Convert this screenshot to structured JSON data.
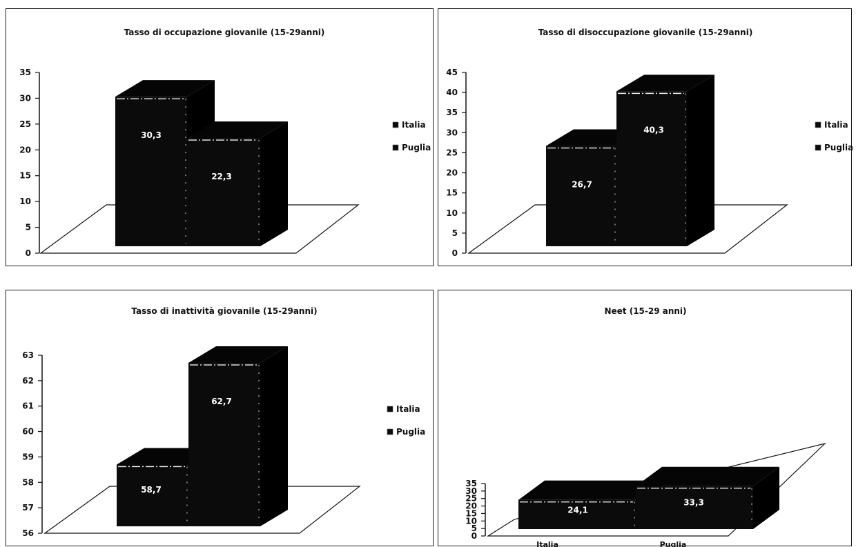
{
  "colors": {
    "bar": "#0b0b0b",
    "top": "#050505",
    "side": "#000000",
    "floor": "#ffffff",
    "line": "#111111"
  },
  "chart_data": [
    {
      "type": "bar",
      "title": "Tasso di occupazione giovanile (15-29anni)",
      "categories": [
        "Italia",
        "Puglia"
      ],
      "values": [
        30.3,
        22.3
      ],
      "data_labels": [
        "30,3",
        "22,3"
      ],
      "ylim": [
        0,
        35
      ],
      "yticks": [
        "0",
        "5",
        "10",
        "15",
        "20",
        "25",
        "30",
        "35"
      ],
      "legend": [
        "Italia",
        "Puglia"
      ],
      "legend_position": "right",
      "xlabel": "",
      "ylabel": ""
    },
    {
      "type": "bar",
      "title": "Tasso di disoccupazione giovanile (15-29anni)",
      "categories": [
        "Italia",
        "Puglia"
      ],
      "values": [
        26.7,
        40.3
      ],
      "data_labels": [
        "26,7",
        "40,3"
      ],
      "ylim": [
        0,
        45
      ],
      "yticks": [
        "0",
        "5",
        "10",
        "15",
        "20",
        "25",
        "30",
        "35",
        "40",
        "45"
      ],
      "legend": [
        "Italia",
        "Puglia"
      ],
      "legend_position": "right",
      "xlabel": "",
      "ylabel": ""
    },
    {
      "type": "bar",
      "title": "Tasso di inattività giovanile (15-29anni)",
      "categories": [
        "Italia",
        "Puglia"
      ],
      "values": [
        58.7,
        62.7
      ],
      "data_labels": [
        "58,7",
        "62,7"
      ],
      "ylim": [
        56,
        63
      ],
      "yticks": [
        "56",
        "57",
        "58",
        "59",
        "60",
        "61",
        "62",
        "63"
      ],
      "legend": [
        "Italia",
        "Puglia"
      ],
      "legend_position": "right",
      "xlabel": "",
      "ylabel": ""
    },
    {
      "type": "bar",
      "title": "Neet (15-29 anni)",
      "categories": [
        "Italia",
        "Puglia"
      ],
      "values": [
        24.1,
        33.3
      ],
      "data_labels": [
        "24,1",
        "33,3"
      ],
      "ylim": [
        0,
        35
      ],
      "yticks": [
        "0",
        "5",
        "10",
        "15",
        "20",
        "25",
        "30",
        "35"
      ],
      "category_labels": [
        "Italia",
        "Puglia"
      ],
      "xlabel": "",
      "ylabel": ""
    }
  ]
}
